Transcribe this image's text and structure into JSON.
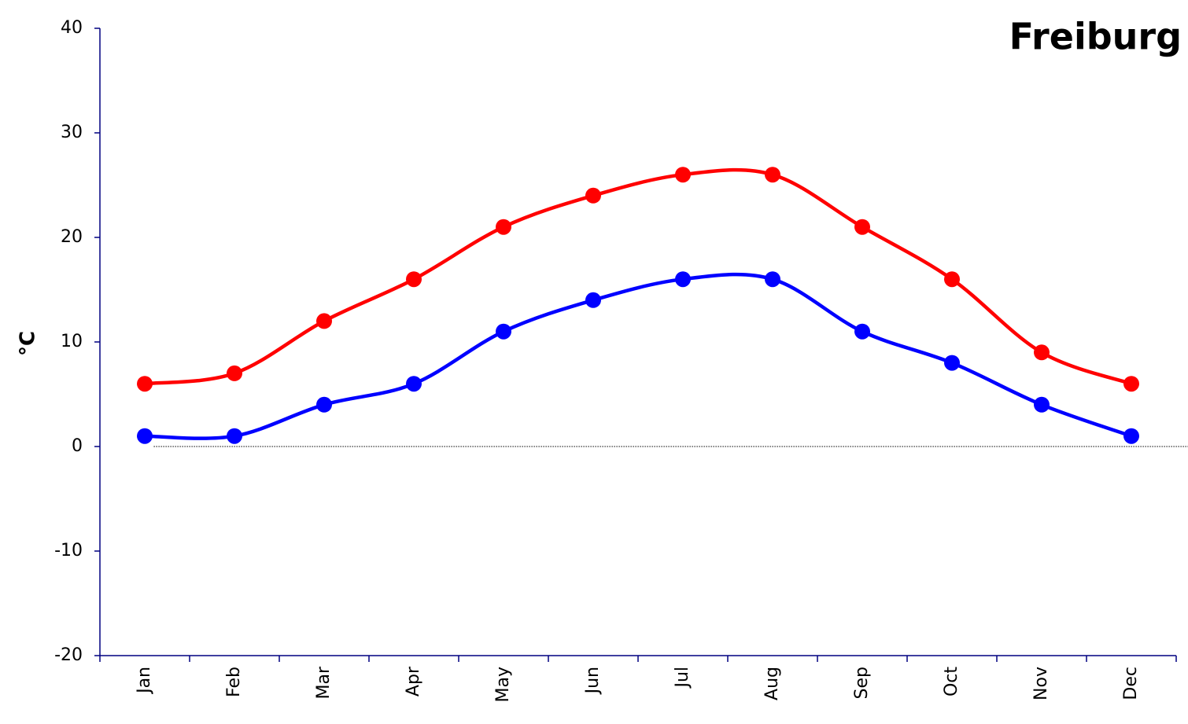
{
  "chart_data": {
    "type": "line",
    "title": "Freiburg",
    "y_label": "°C",
    "categories": [
      "Jan",
      "Feb",
      "Mar",
      "Apr",
      "May",
      "Jun",
      "Jul",
      "Aug",
      "Sep",
      "Oct",
      "Nov",
      "Dec"
    ],
    "series": [
      {
        "color": "#ff0000",
        "values": [
          6,
          7,
          12,
          16,
          21,
          24,
          26,
          26,
          21,
          16,
          9,
          6
        ]
      },
      {
        "color": "#0000ff",
        "values": [
          1,
          1,
          4,
          6,
          11,
          14,
          16,
          16,
          11,
          8,
          4,
          1
        ]
      }
    ],
    "ylim": [
      -20,
      40
    ],
    "yticks": [
      -20,
      -10,
      0,
      10,
      20,
      30,
      40
    ],
    "smooth": true
  }
}
